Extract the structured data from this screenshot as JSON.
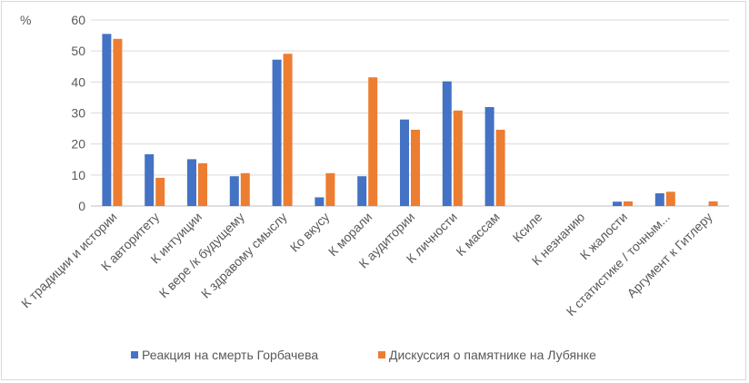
{
  "chart_data": {
    "type": "bar",
    "ylabel": "%",
    "ylim": [
      0,
      60
    ],
    "yticks": [
      0,
      10,
      20,
      30,
      40,
      50,
      60
    ],
    "grid": true,
    "legend_position": "bottom",
    "categories": [
      "К традиции и истории",
      "К авторитету",
      "К интуиции",
      "К вере /к будущему",
      "К здравому смыслу",
      "Ко вкусу",
      "К морали",
      "К аудитории",
      "К личности",
      "К массам",
      "Ксиле",
      "К незнанию",
      "К жалости",
      "К статистике / точным...",
      "Аргумент к Гитлеру"
    ],
    "series": [
      {
        "name": "Реакция на смерть Горбачева",
        "color": "#4472c4",
        "values": [
          55.5,
          16.7,
          15.1,
          9.6,
          47.2,
          2.8,
          9.6,
          27.9,
          40.2,
          31.9,
          0,
          0,
          1.4,
          4.1,
          0
        ]
      },
      {
        "name": "Дискуссия о памятнике на Лубянке",
        "color": "#ed7d31",
        "values": [
          53.9,
          9.1,
          13.8,
          10.6,
          49.1,
          10.6,
          41.5,
          24.6,
          30.8,
          24.6,
          0,
          0,
          1.5,
          4.6,
          1.5
        ]
      }
    ]
  }
}
